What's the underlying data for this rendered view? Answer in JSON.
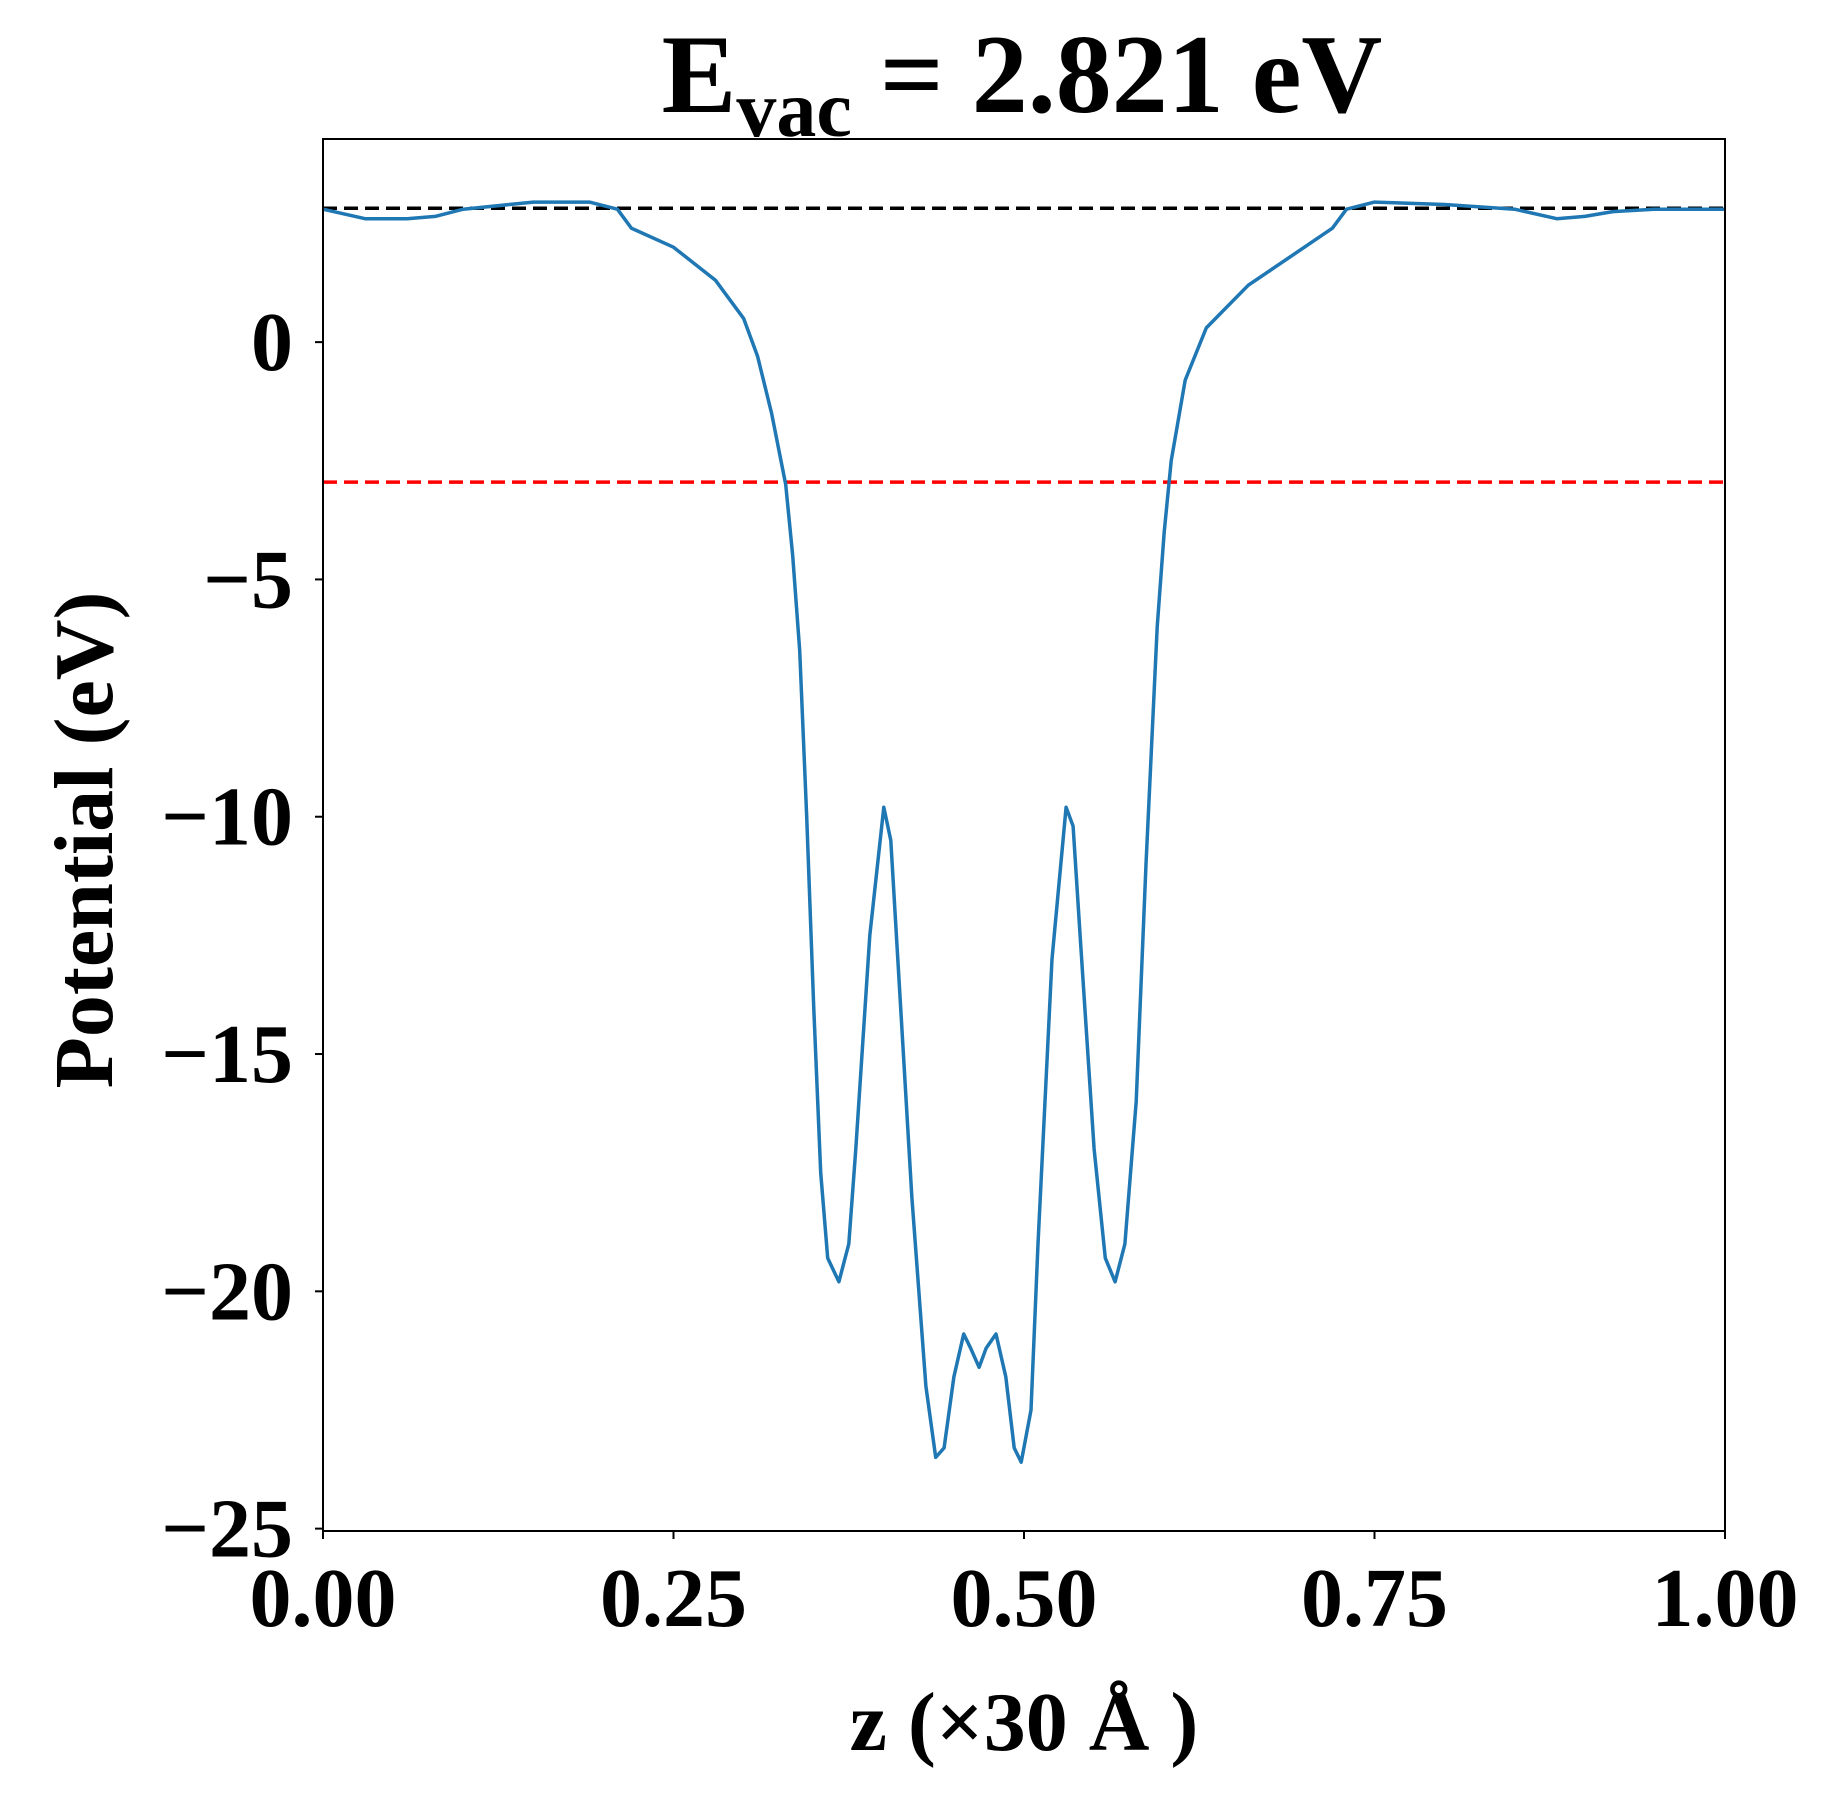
{
  "chart_data": {
    "type": "line",
    "title": {
      "main": "E",
      "sub": "vac",
      "rest": " = 2.821 eV"
    },
    "x_label": "z (×30 Å )",
    "y_label": "Potential (eV)",
    "xlim": [
      0,
      1
    ],
    "ylim": [
      -25.05,
      4.28
    ],
    "xticks": [
      {
        "value": 0,
        "label": "0.00"
      },
      {
        "value": 0.25,
        "label": "0.25"
      },
      {
        "value": 0.5,
        "label": "0.50"
      },
      {
        "value": 0.75,
        "label": "0.75"
      },
      {
        "value": 1,
        "label": "1.00"
      }
    ],
    "yticks": [
      {
        "value": 0,
        "label": "0"
      },
      {
        "value": -5,
        "label": "−5"
      },
      {
        "value": -10,
        "label": "−10"
      },
      {
        "value": -15,
        "label": "−15"
      },
      {
        "value": -20,
        "label": "−20"
      },
      {
        "value": -25,
        "label": "−25"
      }
    ],
    "hlines": [
      {
        "value": 2.821,
        "color": "#000000"
      },
      {
        "value": -2.95,
        "color": "#ff0000"
      }
    ],
    "series": [
      {
        "color": "#1f77b4",
        "x": [
          0,
          0.03,
          0.06,
          0.08,
          0.1,
          0.15,
          0.19,
          0.21,
          0.22,
          0.25,
          0.28,
          0.3,
          0.31,
          0.32,
          0.33,
          0.335,
          0.34,
          0.345,
          0.35,
          0.355,
          0.36,
          0.368,
          0.375,
          0.38,
          0.39,
          0.4,
          0.405,
          0.41,
          0.42,
          0.43,
          0.437,
          0.443,
          0.45,
          0.457,
          0.462,
          0.468,
          0.473,
          0.48,
          0.487,
          0.493,
          0.498,
          0.505,
          0.51,
          0.52,
          0.53,
          0.535,
          0.54,
          0.55,
          0.558,
          0.565,
          0.572,
          0.58,
          0.587,
          0.595,
          0.6,
          0.605,
          0.615,
          0.63,
          0.66,
          0.7,
          0.72,
          0.73,
          0.75,
          0.8,
          0.85,
          0.88,
          0.9,
          0.92,
          0.95,
          1
        ],
        "values": [
          2.8,
          2.6,
          2.6,
          2.65,
          2.8,
          2.95,
          2.95,
          2.8,
          2.4,
          2.0,
          1.3,
          0.5,
          -0.3,
          -1.5,
          -3.0,
          -4.5,
          -6.5,
          -10,
          -14,
          -17.5,
          -19.3,
          -19.8,
          -19,
          -17,
          -12.5,
          -9.8,
          -10.5,
          -13,
          -18,
          -22,
          -23.5,
          -23.3,
          -21.8,
          -20.9,
          -21.2,
          -21.6,
          -21.2,
          -20.9,
          -21.8,
          -23.3,
          -23.6,
          -22.5,
          -19,
          -13,
          -9.8,
          -10.2,
          -12.5,
          -17,
          -19.3,
          -19.8,
          -19,
          -16,
          -11,
          -6,
          -4,
          -2.5,
          -0.8,
          0.3,
          1.2,
          2.0,
          2.4,
          2.8,
          2.95,
          2.9,
          2.8,
          2.6,
          2.65,
          2.75,
          2.8,
          2.8
        ]
      }
    ]
  }
}
